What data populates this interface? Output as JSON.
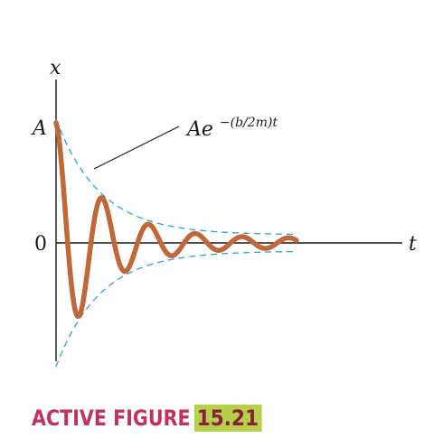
{
  "diagram": {
    "y_axis_label": "x",
    "x_axis_label": "t",
    "amplitude_tick": "A",
    "zero_tick": "0",
    "envelope_formula": {
      "base": "Ae",
      "exponent": "−(b/2m)t"
    },
    "colors": {
      "oscillation": "#c0683a",
      "envelope": "#2aa7c9",
      "axes": "#1a1a1a"
    }
  },
  "caption": {
    "label": "ACTIVE FIGURE",
    "number": "15.21",
    "colors": {
      "label": "#c5305a",
      "number_text": "#8a1f3c",
      "number_bg": "#b7d04a"
    }
  }
}
